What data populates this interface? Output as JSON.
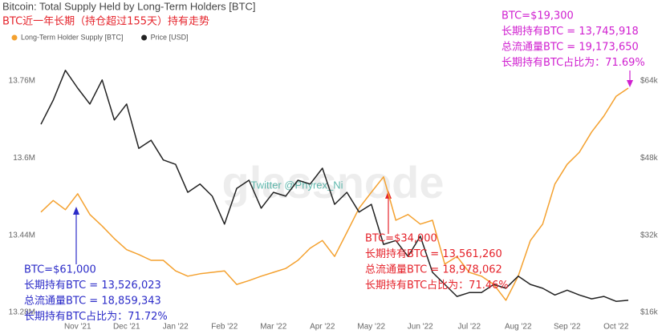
{
  "chart_data": {
    "type": "line",
    "title": "Bitcoin: Total Supply Held by Long-Term Holders [BTC]",
    "subtitle": "BTC近一年长期（持仓超过155天）持有走势",
    "watermark": "glassnode",
    "credit": "Twitter @Phyrex_Ni",
    "legend": "top-left",
    "categories": [
      null,
      null,
      null,
      "Nov '21",
      null,
      null,
      null,
      "Dec '21",
      null,
      null,
      null,
      "Jan '22",
      null,
      null,
      null,
      "Feb '22",
      null,
      null,
      null,
      "Mar '22",
      null,
      null,
      null,
      "Apr '22",
      null,
      null,
      null,
      "May '22",
      null,
      null,
      null,
      "Jun '22",
      null,
      null,
      null,
      "Jul '22",
      null,
      null,
      null,
      "Aug '22",
      null,
      null,
      null,
      "Sep '22",
      null,
      null,
      null,
      "Oct '22",
      null
    ],
    "series": [
      {
        "name": "Long-Term Holder Supply [BTC]",
        "color": "#f4a12f",
        "axis": "y",
        "values": [
          13488000,
          13512000,
          13493000,
          13526000,
          13483000,
          13459000,
          13433000,
          13410000,
          13400000,
          13388000,
          13388000,
          13366000,
          13355000,
          13360000,
          13363000,
          13366000,
          13338000,
          13346000,
          13355000,
          13363000,
          13371000,
          13388000,
          13413000,
          13429000,
          13396000,
          13446000,
          13496000,
          13529000,
          13561000,
          13471000,
          13483000,
          13463000,
          13471000,
          13380000,
          13396000,
          13363000,
          13355000,
          13338000,
          13305000,
          13355000,
          13429000,
          13463000,
          13546000,
          13587000,
          13612000,
          13654000,
          13687000,
          13728000,
          13745000
        ]
      },
      {
        "name": "Price [USD]",
        "color": "#222222",
        "axis": "y2",
        "values": [
          55000,
          60000,
          66200,
          62500,
          59200,
          64200,
          55900,
          59200,
          50000,
          51700,
          47600,
          46700,
          40900,
          42600,
          40100,
          34300,
          41700,
          43400,
          37600,
          40900,
          40100,
          43400,
          42600,
          45900,
          38400,
          40900,
          36800,
          38400,
          30100,
          30900,
          27600,
          31800,
          24300,
          21800,
          19300,
          20100,
          20100,
          21800,
          21000,
          23500,
          21800,
          21000,
          19600,
          20600,
          19600,
          18800,
          19300,
          18300,
          18500
        ]
      }
    ],
    "ylim": [
      13280000,
      13760000
    ],
    "yticks": [
      {
        "value": 13280000,
        "label": "13.28M"
      },
      {
        "value": 13440000,
        "label": "13.44M"
      },
      {
        "value": 13600000,
        "label": "13.6M"
      },
      {
        "value": 13760000,
        "label": "13.76M"
      }
    ],
    "y2lim": [
      16000,
      64000
    ],
    "y2ticks": [
      {
        "value": 16000,
        "label": "$16k"
      },
      {
        "value": 32000,
        "label": "$32k"
      },
      {
        "value": 48000,
        "label": "$48k"
      },
      {
        "value": 64000,
        "label": "$64k"
      }
    ],
    "annotations": [
      {
        "color": "#2b2bc8",
        "lines": [
          "BTC=$61,000",
          "长期持有BTC = 13,526,023",
          "总流通量BTC = 18,859,343",
          "长期持有BTC占比为：71.72%"
        ]
      },
      {
        "color": "#e5232b",
        "lines": [
          "BTC=$34,000",
          "长期持有BTC = 13,561,260",
          "总流通量BTC = 18,978,062",
          "长期持有BTC占比为：71.46%"
        ]
      },
      {
        "color": "#d020d0",
        "lines": [
          "BTC=$19,300",
          "长期持有BTC = 13,745,918",
          "总流通量BTC = 19,173,650",
          "长期持有BTC占比为：71.69%"
        ]
      }
    ]
  }
}
